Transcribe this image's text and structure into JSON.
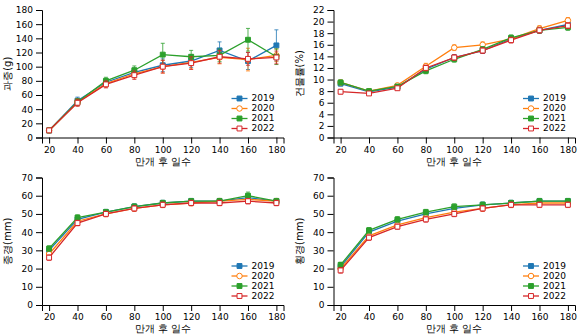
{
  "chart_data": [
    {
      "type": "line",
      "xlabel": "만개 후 일수",
      "ylabel": "과중(g)",
      "x": [
        20,
        40,
        60,
        80,
        100,
        120,
        140,
        160,
        180
      ],
      "xlim": [
        15,
        185
      ],
      "xticks": [
        20,
        40,
        60,
        80,
        100,
        120,
        140,
        160,
        180
      ],
      "ylim": [
        0,
        180
      ],
      "yticks": [
        0,
        20,
        40,
        60,
        80,
        100,
        120,
        140,
        160,
        180
      ],
      "grid": false,
      "legend": "lower right",
      "series": [
        {
          "name": "2019",
          "marker": "square",
          "line_style": "solid",
          "values": [
            10,
            52,
            78,
            92,
            102,
            108,
            123,
            108,
            130
          ],
          "errors": [
            1,
            5,
            5,
            6,
            9,
            9,
            12,
            12,
            22
          ]
        },
        {
          "name": "2020",
          "marker": "circle-open",
          "line_style": "solid",
          "values": [
            10,
            50,
            76,
            90,
            100,
            106,
            113,
            110,
            116
          ],
          "errors": [
            1,
            5,
            5,
            6,
            9,
            9,
            9,
            16,
            9
          ]
        },
        {
          "name": "2021",
          "marker": "square",
          "line_style": "solid",
          "values": [
            10,
            50,
            80,
            95,
            117,
            114,
            116,
            138,
            114
          ],
          "errors": [
            1,
            5,
            5,
            6,
            16,
            9,
            9,
            16,
            11
          ]
        },
        {
          "name": "2022",
          "marker": "square-open",
          "line_style": "solid",
          "values": [
            10,
            49,
            75,
            88,
            100,
            105,
            114,
            111,
            113
          ],
          "errors": [
            1,
            5,
            5,
            6,
            9,
            9,
            9,
            9,
            9
          ]
        }
      ]
    },
    {
      "type": "line",
      "xlabel": "만개 후 일수",
      "ylabel": "건물률(%)",
      "x": [
        20,
        40,
        60,
        80,
        100,
        120,
        140,
        160,
        180
      ],
      "xlim": [
        15,
        185
      ],
      "xticks": [
        20,
        40,
        60,
        80,
        100,
        120,
        140,
        160,
        180
      ],
      "ylim": [
        0,
        22
      ],
      "yticks": [
        0,
        2,
        4,
        6,
        8,
        10,
        12,
        14,
        16,
        18,
        20,
        22
      ],
      "grid": false,
      "legend": "lower right",
      "series": [
        {
          "name": "2019",
          "marker": "square",
          "line_style": "solid",
          "values": [
            9.3,
            7.9,
            8.7,
            11.8,
            13.8,
            15.0,
            17.0,
            18.5,
            19.5
          ],
          "errors": [
            0.4,
            0.3,
            0.3,
            0.5,
            0.5,
            0.5,
            0.5,
            0.5,
            0.5
          ]
        },
        {
          "name": "2020",
          "marker": "circle-open",
          "line_style": "solid",
          "values": [
            9.5,
            8.0,
            9.0,
            12.3,
            15.5,
            16.0,
            17.0,
            18.8,
            20.2
          ],
          "errors": [
            0.4,
            0.3,
            0.3,
            0.5,
            0.5,
            0.5,
            0.5,
            0.5,
            0.5
          ]
        },
        {
          "name": "2021",
          "marker": "square",
          "line_style": "solid",
          "values": [
            9.5,
            8.0,
            8.8,
            11.5,
            13.5,
            15.2,
            17.2,
            18.5,
            19.0
          ],
          "errors": [
            0.4,
            0.3,
            0.3,
            0.5,
            0.5,
            0.5,
            0.5,
            0.5,
            0.5
          ]
        },
        {
          "name": "2022",
          "marker": "square-open",
          "line_style": "solid",
          "values": [
            7.9,
            7.6,
            8.5,
            12.0,
            13.8,
            15.0,
            16.8,
            18.5,
            19.3
          ],
          "errors": [
            0.4,
            0.3,
            0.3,
            0.5,
            0.5,
            0.5,
            0.5,
            0.5,
            0.5
          ]
        }
      ]
    },
    {
      "type": "line",
      "xlabel": "만개 후 일수",
      "ylabel": "종경(mm)",
      "x": [
        20,
        40,
        60,
        80,
        100,
        120,
        140,
        160,
        180
      ],
      "xlim": [
        15,
        185
      ],
      "xticks": [
        20,
        40,
        60,
        80,
        100,
        120,
        140,
        160,
        180
      ],
      "ylim": [
        0,
        70
      ],
      "yticks": [
        0,
        10,
        20,
        30,
        40,
        50,
        60,
        70
      ],
      "grid": false,
      "legend": "lower right",
      "series": [
        {
          "name": "2019",
          "marker": "square",
          "line_style": "solid",
          "values": [
            30,
            47,
            51,
            54,
            56,
            57,
            57,
            59,
            57
          ],
          "errors": [
            1.5,
            1.5,
            1.5,
            1.5,
            1.5,
            1.5,
            1.5,
            2.0,
            1.5
          ]
        },
        {
          "name": "2020",
          "marker": "circle-open",
          "line_style": "solid",
          "values": [
            28,
            46,
            50,
            53,
            55,
            56,
            57,
            58,
            57
          ],
          "errors": [
            1.5,
            1.5,
            1.5,
            1.5,
            1.5,
            1.5,
            1.5,
            1.5,
            1.5
          ]
        },
        {
          "name": "2021",
          "marker": "square",
          "line_style": "solid",
          "values": [
            31,
            48,
            51,
            54,
            56,
            57,
            57,
            60,
            57
          ],
          "errors": [
            1.5,
            1.5,
            1.5,
            1.5,
            1.5,
            1.5,
            1.5,
            2.0,
            1.5
          ]
        },
        {
          "name": "2022",
          "marker": "square-open",
          "line_style": "solid",
          "values": [
            26,
            45,
            50,
            53,
            55,
            56,
            56,
            57,
            56
          ],
          "errors": [
            1.5,
            1.5,
            1.5,
            1.5,
            1.5,
            1.5,
            1.5,
            1.5,
            1.5
          ]
        }
      ]
    },
    {
      "type": "line",
      "xlabel": "만개 후 일수",
      "ylabel": "횡경(mm)",
      "x": [
        20,
        40,
        60,
        80,
        100,
        120,
        140,
        160,
        180
      ],
      "xlim": [
        15,
        185
      ],
      "xticks": [
        20,
        40,
        60,
        80,
        100,
        120,
        140,
        160,
        180
      ],
      "ylim": [
        0,
        70
      ],
      "yticks": [
        0,
        10,
        20,
        30,
        40,
        50,
        60,
        70
      ],
      "grid": false,
      "legend": "lower right",
      "series": [
        {
          "name": "2019",
          "marker": "square",
          "line_style": "solid",
          "values": [
            21,
            40,
            46,
            50,
            53,
            55,
            56,
            57,
            57
          ],
          "errors": [
            1.5,
            1.5,
            1.5,
            1.5,
            1.5,
            1.5,
            1.5,
            1.5,
            1.5
          ]
        },
        {
          "name": "2020",
          "marker": "circle-open",
          "line_style": "solid",
          "values": [
            20,
            38,
            44,
            48,
            51,
            53,
            55,
            56,
            56
          ],
          "errors": [
            1.5,
            1.5,
            1.5,
            1.5,
            1.5,
            1.5,
            1.5,
            1.5,
            1.5
          ]
        },
        {
          "name": "2021",
          "marker": "square",
          "line_style": "solid",
          "values": [
            22,
            41,
            47,
            51,
            54,
            55,
            56,
            57,
            57
          ],
          "errors": [
            1.5,
            1.5,
            1.5,
            1.5,
            1.5,
            1.5,
            1.5,
            1.5,
            1.5
          ]
        },
        {
          "name": "2022",
          "marker": "square-open",
          "line_style": "solid",
          "values": [
            19,
            37,
            43,
            47,
            50,
            53,
            55,
            55,
            55
          ],
          "errors": [
            1.5,
            1.5,
            1.5,
            1.5,
            1.5,
            1.5,
            1.5,
            1.5,
            1.5
          ]
        }
      ]
    }
  ]
}
